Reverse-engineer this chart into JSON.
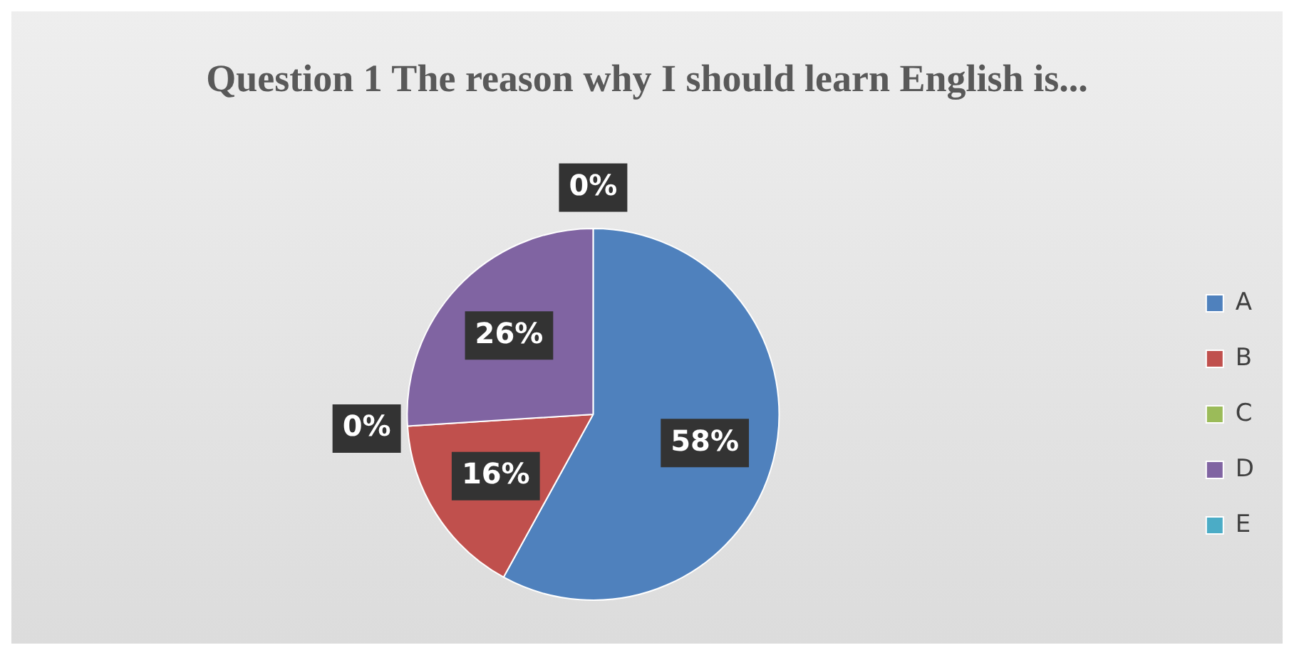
{
  "chart_data": {
    "type": "pie",
    "title": "Question 1 The reason why I should learn English is...",
    "categories": [
      "A",
      "B",
      "C",
      "D",
      "E"
    ],
    "values": [
      58,
      16,
      0,
      26,
      0
    ],
    "value_labels": [
      "58%",
      "16%",
      "0%",
      "26%",
      "0%"
    ],
    "colors": [
      "#4f81bd",
      "#c0504d",
      "#9bbb59",
      "#8064a2",
      "#4bacc6"
    ],
    "legend": "right"
  }
}
